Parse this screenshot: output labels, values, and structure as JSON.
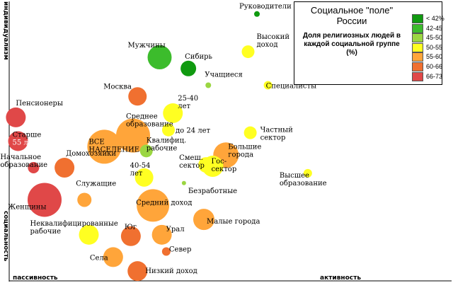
{
  "chart_data": {
    "type": "scatter",
    "title": "Социальное \"поле\" России",
    "legend_title": "Доля религиозных людей в каждой социальной группе (%)",
    "legend_placement": "top-right",
    "xlabel_left": "пассивность",
    "xlabel_right": "активность",
    "ylabel_top": "индивидуализм",
    "ylabel_bottom": "социальность",
    "legend": [
      {
        "label": "< 42%",
        "color": "#109a10"
      },
      {
        "label": "42-45",
        "color": "#3cbc2c"
      },
      {
        "label": "45-50",
        "color": "#9bd642"
      },
      {
        "label": "50-55",
        "color": "#ffff22"
      },
      {
        "label": "55-60",
        "color": "#ffa53a"
      },
      {
        "label": "60-66",
        "color": "#f07030"
      },
      {
        "label": "66-73",
        "color": "#e04848"
      }
    ],
    "points": [
      {
        "label": "Руководители",
        "x": 0.56,
        "y": 0.955,
        "size": 4,
        "cat": 0
      },
      {
        "label": "Мужчины",
        "x": 0.34,
        "y": 0.8,
        "size": 17,
        "cat": 1
      },
      {
        "label": "Сибирь",
        "x": 0.405,
        "y": 0.76,
        "size": 11,
        "cat": 0
      },
      {
        "label": "Высокий доход",
        "x": 0.54,
        "y": 0.82,
        "size": 9,
        "cat": 3
      },
      {
        "label": "Учащиеся",
        "x": 0.45,
        "y": 0.7,
        "size": 4,
        "cat": 2
      },
      {
        "label": "Специалисты",
        "x": 0.585,
        "y": 0.7,
        "size": 6,
        "cat": 3
      },
      {
        "label": "Москва",
        "x": 0.29,
        "y": 0.66,
        "size": 13,
        "cat": 5
      },
      {
        "label": "25-40 лет",
        "x": 0.37,
        "y": 0.6,
        "size": 14,
        "cat": 3
      },
      {
        "label": "Пенсионеры",
        "x": 0.015,
        "y": 0.585,
        "size": 14,
        "cat": 6
      },
      {
        "label": "Среднее образование",
        "x": 0.28,
        "y": 0.52,
        "size": 24,
        "cat": 4
      },
      {
        "label": "до 24 лет",
        "x": 0.36,
        "y": 0.54,
        "size": 9,
        "cat": 3
      },
      {
        "label": "Старше 55 лет",
        "x": 0.02,
        "y": 0.5,
        "size": 14,
        "cat": 6
      },
      {
        "label": "ВСЕ НАСЕЛЕНИЕ",
        "x": 0.215,
        "y": 0.48,
        "size": 24,
        "cat": 4
      },
      {
        "label": "Частный сектор",
        "x": 0.545,
        "y": 0.53,
        "size": 9,
        "cat": 3
      },
      {
        "label": "Квалифиц. рабочие",
        "x": 0.31,
        "y": 0.465,
        "size": 9,
        "cat": 2
      },
      {
        "label": "Большие города",
        "x": 0.49,
        "y": 0.45,
        "size": 18,
        "cat": 4
      },
      {
        "label": "Смеш. сектор",
        "x": 0.445,
        "y": 0.415,
        "size": 11,
        "cat": 3
      },
      {
        "label": "Гос-сектор",
        "x": 0.46,
        "y": 0.41,
        "size": 15,
        "cat": 3
      },
      {
        "label": "Начальное образование",
        "x": 0.055,
        "y": 0.405,
        "size": 8,
        "cat": 6
      },
      {
        "label": "Домохозяйки",
        "x": 0.125,
        "y": 0.405,
        "size": 14,
        "cat": 5
      },
      {
        "label": "40-54 лет",
        "x": 0.305,
        "y": 0.37,
        "size": 13,
        "cat": 3
      },
      {
        "label": "Высшее образование",
        "x": 0.675,
        "y": 0.385,
        "size": 6,
        "cat": 3
      },
      {
        "label": "Безработные",
        "x": 0.395,
        "y": 0.35,
        "size": 3,
        "cat": 2
      },
      {
        "label": "Женщины",
        "x": 0.08,
        "y": 0.29,
        "size": 24,
        "cat": 6
      },
      {
        "label": "Служащие",
        "x": 0.17,
        "y": 0.29,
        "size": 10,
        "cat": 4
      },
      {
        "label": "Средний доход",
        "x": 0.325,
        "y": 0.27,
        "size": 23,
        "cat": 4
      },
      {
        "label": "Малые города",
        "x": 0.44,
        "y": 0.22,
        "size": 15,
        "cat": 4
      },
      {
        "label": "Неквалифицированные рабочие",
        "x": 0.18,
        "y": 0.165,
        "size": 14,
        "cat": 3
      },
      {
        "label": "Юг",
        "x": 0.275,
        "y": 0.16,
        "size": 14,
        "cat": 5
      },
      {
        "label": "Урал",
        "x": 0.345,
        "y": 0.165,
        "size": 14,
        "cat": 4
      },
      {
        "label": "Север",
        "x": 0.355,
        "y": 0.105,
        "size": 6,
        "cat": 5
      },
      {
        "label": "Села",
        "x": 0.235,
        "y": 0.085,
        "size": 14,
        "cat": 4
      },
      {
        "label": "Низкий доход",
        "x": 0.29,
        "y": 0.035,
        "size": 14,
        "cat": 5
      }
    ]
  }
}
